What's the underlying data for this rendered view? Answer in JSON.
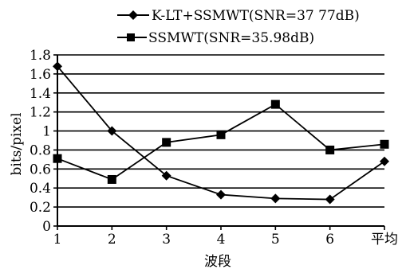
{
  "chart_data": {
    "type": "line",
    "title": "",
    "xlabel": "波段",
    "ylabel": "bits/pixel",
    "categories": [
      "1",
      "2",
      "3",
      "4",
      "5",
      "6",
      "平均"
    ],
    "ylim": [
      0,
      1.8
    ],
    "yticks": [
      "0",
      "0.2",
      "0.4",
      "0.6",
      "0.8",
      "1",
      "1.2",
      "1.4",
      "1.6",
      "1.8"
    ],
    "grid": true,
    "legend_position": "top",
    "series": [
      {
        "name": "K-LT+SSMWT(SNR=37 77dB)",
        "marker": "diamond",
        "color": "#000000",
        "values": [
          1.68,
          1.0,
          0.53,
          0.33,
          0.29,
          0.28,
          0.68
        ]
      },
      {
        "name": "SSMWT(SNR=35.98dB)",
        "marker": "square",
        "color": "#000000",
        "values": [
          0.71,
          0.49,
          0.88,
          0.96,
          1.28,
          0.8,
          0.86
        ]
      }
    ]
  }
}
